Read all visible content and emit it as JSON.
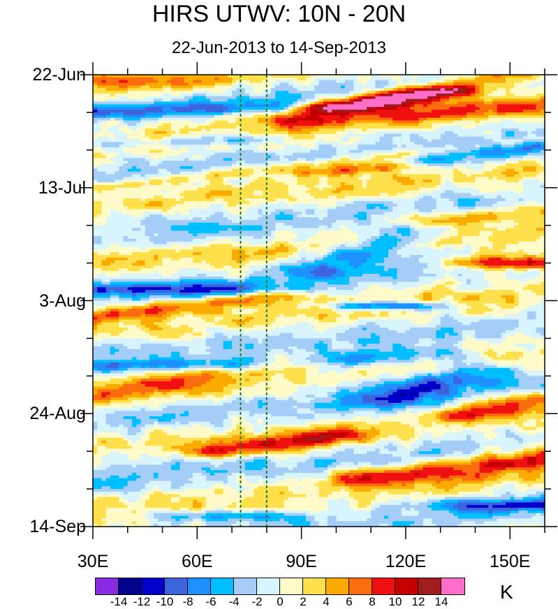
{
  "chart_data": {
    "type": "heatmap",
    "title": "HIRS UTWV: 10N - 20N",
    "subtitle": "22-Jun-2013 to 14-Sep-2013",
    "xlabel": "",
    "ylabel": "",
    "x_range": [
      30,
      160
    ],
    "y_range": [
      "22-Jun-2013",
      "14-Sep-2013"
    ],
    "x_ticks": [
      {
        "value": 30,
        "label": "30E"
      },
      {
        "value": 60,
        "label": "60E"
      },
      {
        "value": 90,
        "label": "90E"
      },
      {
        "value": 120,
        "label": "120E"
      },
      {
        "value": 150,
        "label": "150E"
      }
    ],
    "y_ticks": [
      {
        "day": 0,
        "label": "22-Jun"
      },
      {
        "day": 21,
        "label": "13-Jul"
      },
      {
        "day": 42,
        "label": "3-Aug"
      },
      {
        "day": 63,
        "label": "24-Aug"
      },
      {
        "day": 84,
        "label": "14-Sep"
      }
    ],
    "reference_lines_lon": [
      72.5,
      80
    ],
    "colorbar": {
      "units": "K",
      "levels": [
        -14,
        -12,
        -10,
        -8,
        -6,
        -4,
        -2,
        0,
        2,
        4,
        6,
        8,
        10,
        12,
        14
      ],
      "label_values": [
        "-14",
        "-12",
        "-10",
        "-8",
        "-6",
        "-4",
        "-2",
        "0",
        "2",
        "4",
        "6",
        "8",
        "10",
        "12",
        "14"
      ],
      "colors": [
        "#8a2be2",
        "#00008b",
        "#0000cd",
        "#3c64dc",
        "#1e90ff",
        "#00bfff",
        "#a4cdf7",
        "#d8f4fc",
        "#fffbc8",
        "#fde04b",
        "#fbaa00",
        "#fb6d0c",
        "#f01010",
        "#c40000",
        "#a01c1c",
        "#ff6ec8"
      ]
    },
    "anomaly_features": [
      {
        "lon0": 30,
        "day0": 1,
        "lon1": 60,
        "day1": 1,
        "value": 4,
        "width": 1.2
      },
      {
        "lon0": 90,
        "day0": 8,
        "lon1": 160,
        "day1": -1,
        "value": 8,
        "width": 1.8
      },
      {
        "lon0": 100,
        "day0": 6,
        "lon1": 130,
        "day1": 3,
        "value": 10,
        "width": 1.0
      },
      {
        "lon0": 120,
        "day0": 8,
        "lon1": 160,
        "day1": 5,
        "value": 5,
        "width": 1.4
      },
      {
        "lon0": 30,
        "day0": 21,
        "lon1": 160,
        "day1": 12,
        "value": 4,
        "width": 0.8
      },
      {
        "lon0": 95,
        "day0": 18,
        "lon1": 115,
        "day1": 17,
        "value": 6,
        "width": 0.9
      },
      {
        "lon0": 130,
        "day0": 27,
        "lon1": 160,
        "day1": 25,
        "value": 5,
        "width": 1.6
      },
      {
        "lon0": 145,
        "day0": 35,
        "lon1": 160,
        "day1": 35,
        "value": 12,
        "width": 1.3
      },
      {
        "lon0": 30,
        "day0": 45,
        "lon1": 80,
        "day1": 41,
        "value": 6,
        "width": 1.0
      },
      {
        "lon0": 30,
        "day0": 60,
        "lon1": 60,
        "day1": 57,
        "value": 5,
        "width": 2.0
      },
      {
        "lon0": 70,
        "day0": 70,
        "lon1": 100,
        "day1": 67,
        "value": 8,
        "width": 1.1
      },
      {
        "lon0": 110,
        "day0": 75,
        "lon1": 160,
        "day1": 71,
        "value": 9,
        "width": 2.0
      },
      {
        "lon0": 140,
        "day0": 63,
        "lon1": 160,
        "day1": 60,
        "value": 7,
        "width": 1.2
      },
      {
        "lon0": 30,
        "day0": 7,
        "lon1": 80,
        "day1": 6,
        "value": -6,
        "width": 1.2
      },
      {
        "lon0": 30,
        "day0": 13,
        "lon1": 75,
        "day1": 12,
        "value": -5,
        "width": 1.0
      },
      {
        "lon0": 30,
        "day0": 40,
        "lon1": 70,
        "day1": 40,
        "value": -7,
        "width": 1.3
      },
      {
        "lon0": 95,
        "day0": 36,
        "lon1": 120,
        "day1": 30,
        "value": -7,
        "width": 1.8
      },
      {
        "lon0": 110,
        "day0": 43,
        "lon1": 120,
        "day1": 43,
        "value": -11,
        "width": 0.8
      },
      {
        "lon0": 105,
        "day0": 53,
        "lon1": 130,
        "day1": 52,
        "value": -7,
        "width": 1.4
      },
      {
        "lon0": 115,
        "day0": 60,
        "lon1": 140,
        "day1": 55,
        "value": -8,
        "width": 2.0
      },
      {
        "lon0": 30,
        "day0": 54,
        "lon1": 70,
        "day1": 54,
        "value": -6,
        "width": 1.1
      },
      {
        "lon0": 130,
        "day0": 16,
        "lon1": 160,
        "day1": 13,
        "value": -6,
        "width": 1.2
      },
      {
        "lon0": 140,
        "day0": 80,
        "lon1": 160,
        "day1": 80,
        "value": -8,
        "width": 1.2
      },
      {
        "lon0": 60,
        "day0": 82,
        "lon1": 80,
        "day1": 82,
        "value": -6,
        "width": 1.0
      }
    ]
  }
}
